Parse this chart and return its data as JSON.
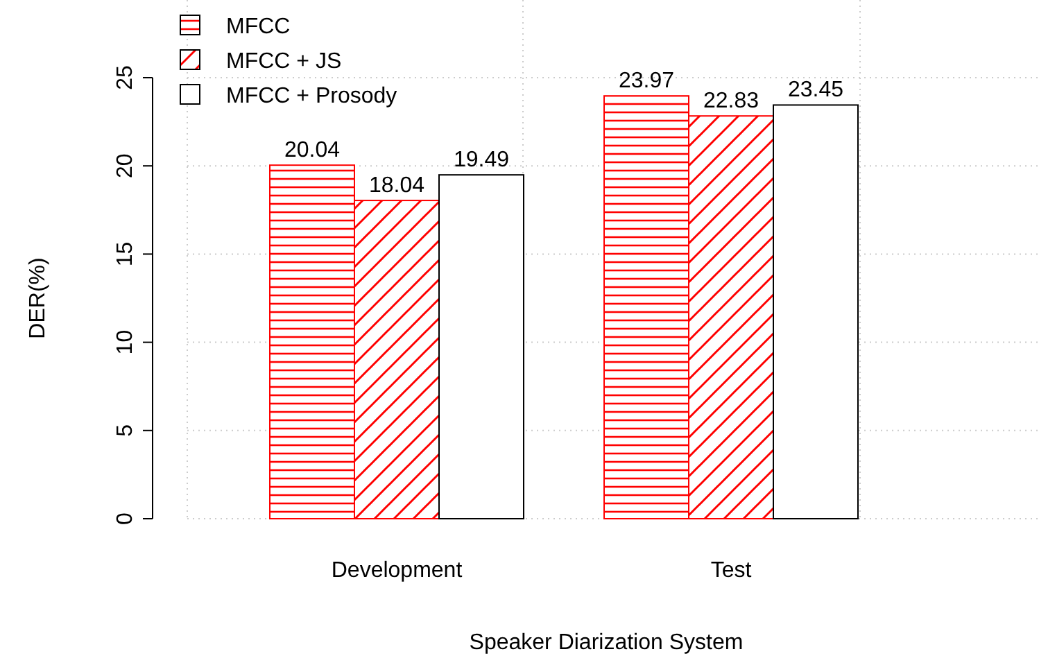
{
  "chart_data": {
    "type": "bar",
    "xlabel": "Speaker Diarization System",
    "ylabel": "DER(%)",
    "categories": [
      "Development",
      "Test"
    ],
    "series": [
      {
        "name": "MFCC",
        "color": "#ff0000",
        "values": [
          20.04,
          23.97
        ]
      },
      {
        "name": "MFCC + JS",
        "color": "#ff0000",
        "values": [
          18.04,
          22.83
        ]
      },
      {
        "name": "MFCC + Prosody",
        "color": "#ffffff",
        "values": [
          19.49,
          23.45
        ]
      }
    ],
    "ylim": [
      0,
      25
    ],
    "yticks": [
      0,
      5,
      10,
      15,
      20,
      25
    ],
    "grid": true,
    "legend": "top left",
    "data_labels": true
  }
}
